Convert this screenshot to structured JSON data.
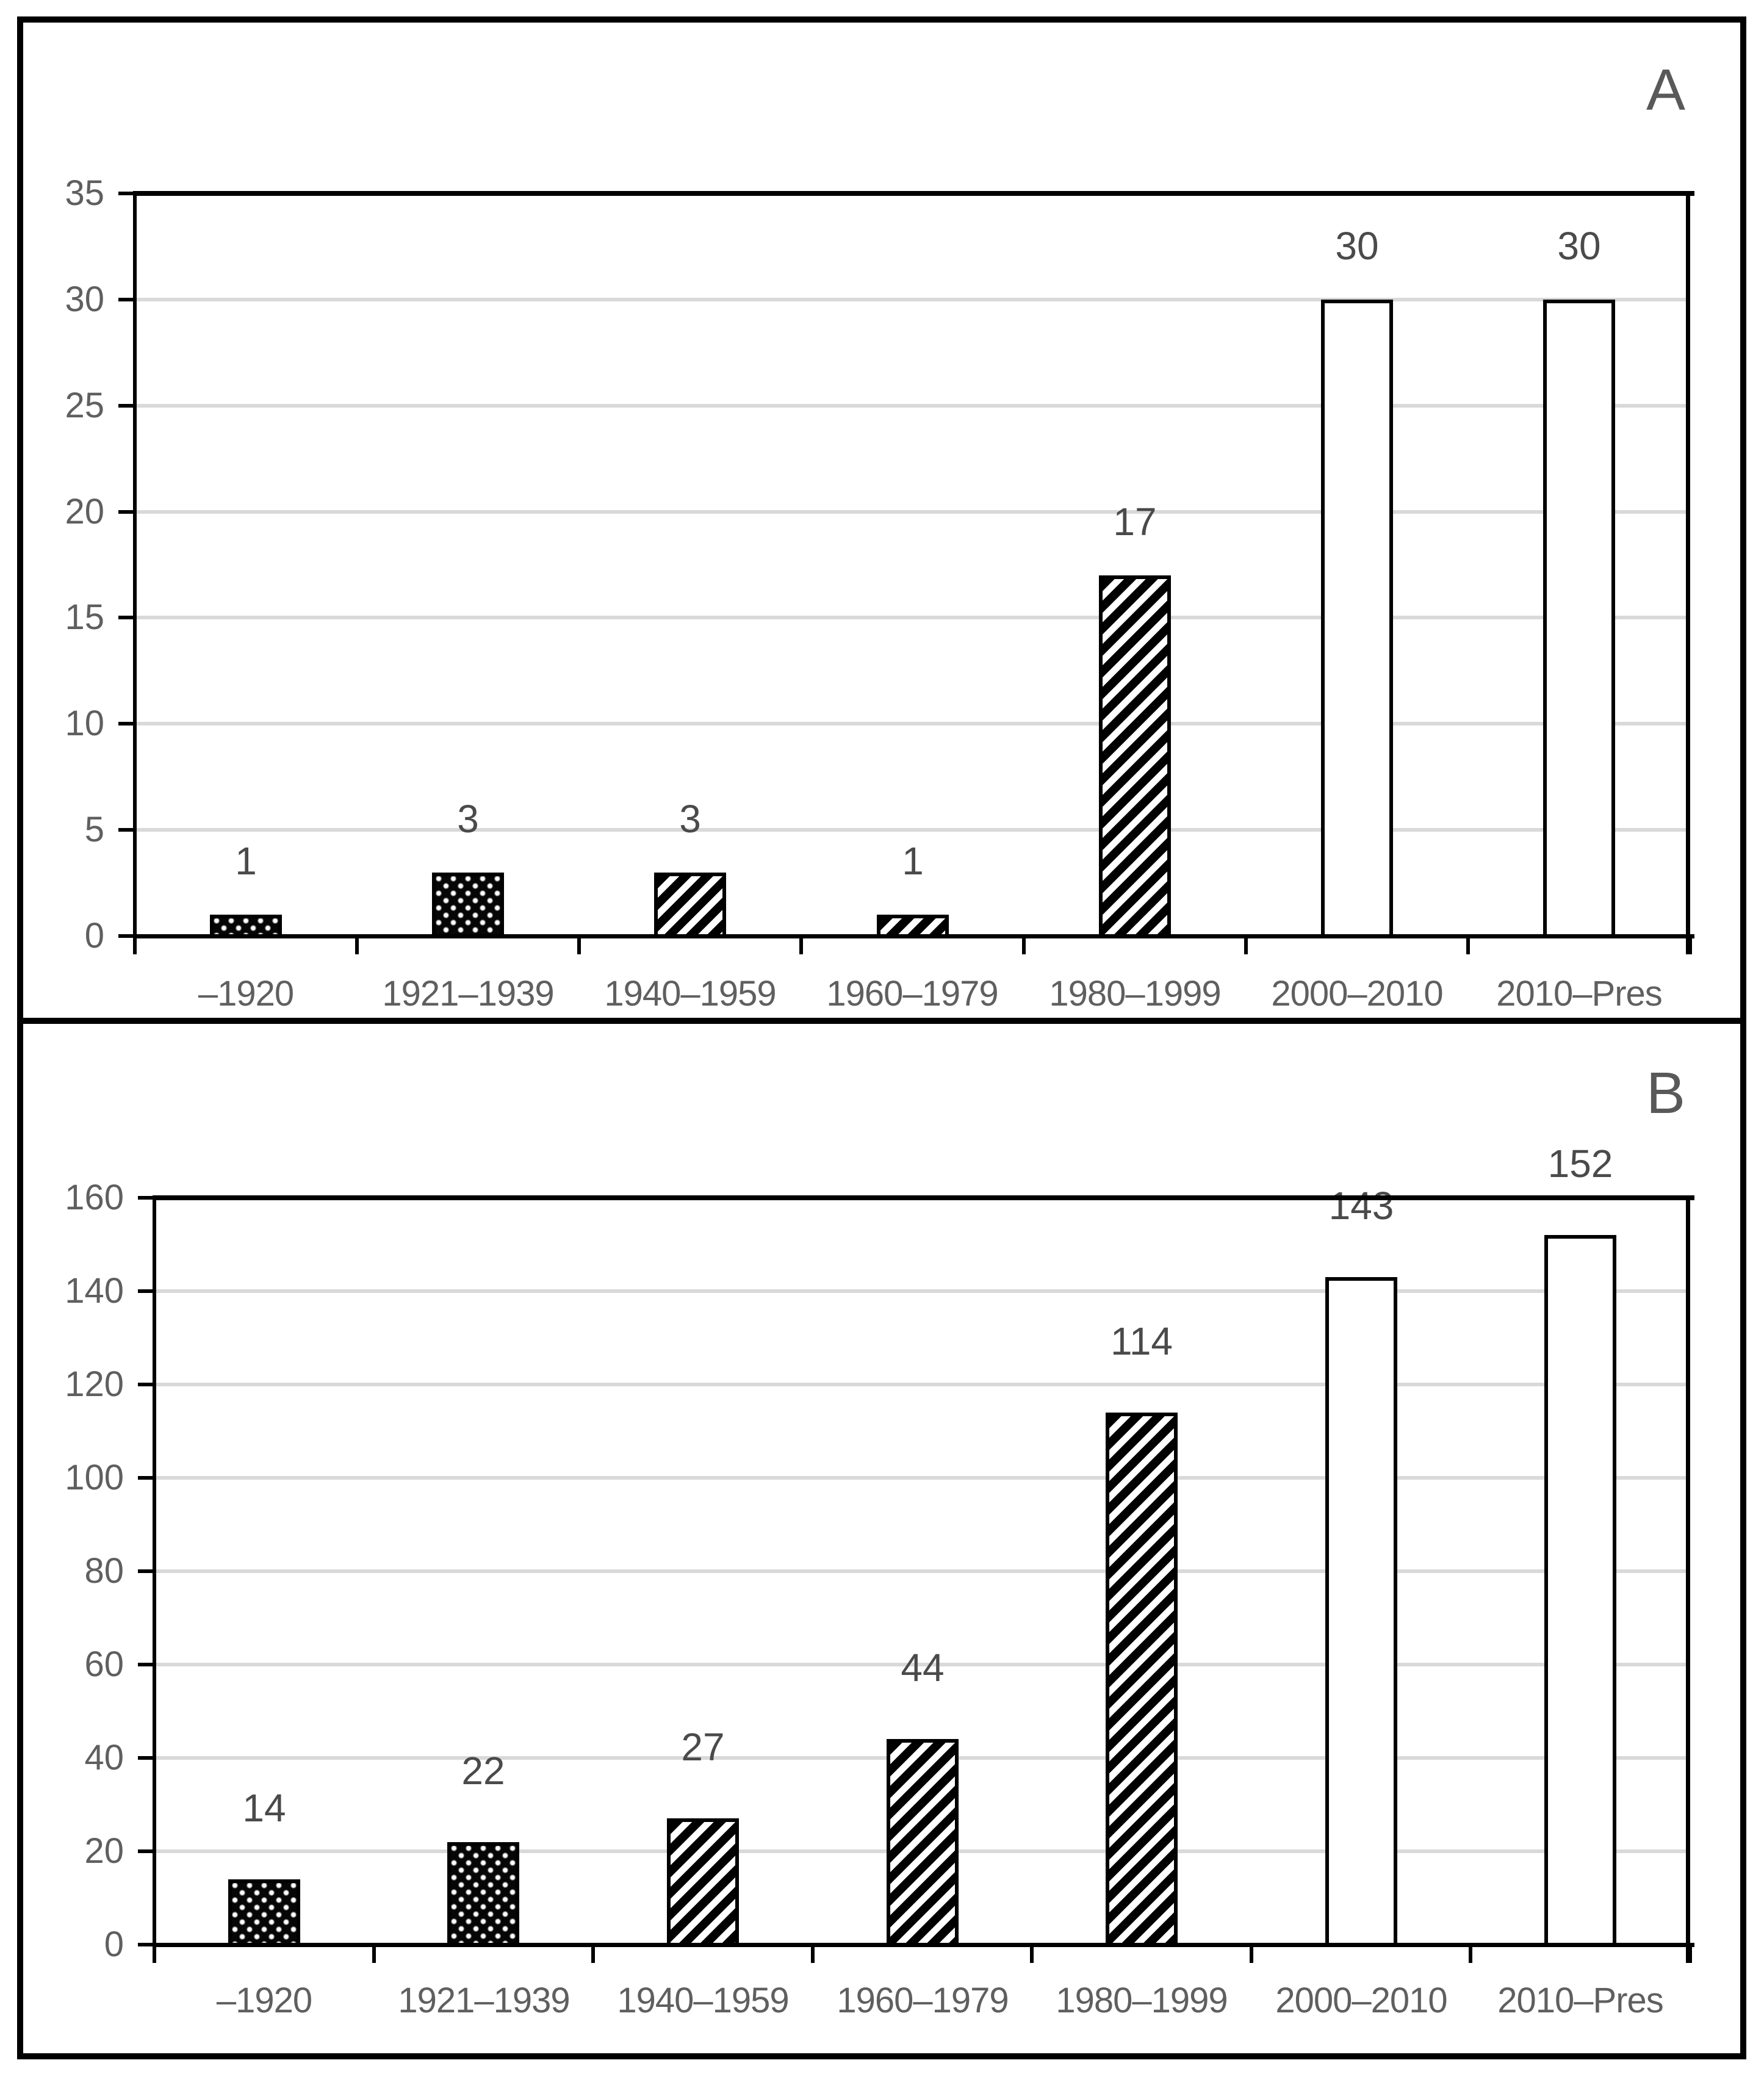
{
  "colors": {
    "axis": "#000000",
    "gridline": "#d9d9d9",
    "tick_text": "#5f5f5f",
    "value_text": "#4a4a4a",
    "panel_letter_text": "#595959",
    "bar_dark_fill": "#000000",
    "bar_light_fill": "#ffffff"
  },
  "chart_data": [
    {
      "type": "bar",
      "panel_label": "A",
      "title": "",
      "xlabel": "",
      "ylabel": "",
      "legend": "none",
      "grid": true,
      "categories": [
        "–1920",
        "1921–1939",
        "1940–1959",
        "1960–1979",
        "1980–1999",
        "2000–2010",
        "2010–Pres"
      ],
      "values": [
        1,
        3,
        3,
        1,
        17,
        30,
        30
      ],
      "value_labels": [
        "1",
        "3",
        "3",
        "1",
        "17",
        "30",
        "30"
      ],
      "bar_styles": [
        "dots",
        "dots",
        "diagonal",
        "diagonal",
        "diagonal",
        "plain",
        "plain"
      ],
      "ylim": [
        0,
        35
      ],
      "ytick_interval": 5,
      "ytick_labels": [
        "0",
        "5",
        "10",
        "15",
        "20",
        "25",
        "30",
        "35"
      ]
    },
    {
      "type": "bar",
      "panel_label": "B",
      "title": "",
      "xlabel": "",
      "ylabel": "",
      "legend": "none",
      "grid": true,
      "categories": [
        "–1920",
        "1921–1939",
        "1940–1959",
        "1960–1979",
        "1980–1999",
        "2000–2010",
        "2010–Pres"
      ],
      "values": [
        14,
        22,
        27,
        44,
        114,
        143,
        152
      ],
      "value_labels": [
        "14",
        "22",
        "27",
        "44",
        "114",
        "143",
        "152"
      ],
      "bar_styles": [
        "dots",
        "dots",
        "diagonal",
        "diagonal",
        "diagonal",
        "plain",
        "plain"
      ],
      "ylim": [
        0,
        160
      ],
      "ytick_interval": 20,
      "ytick_labels": [
        "0",
        "20",
        "40",
        "60",
        "80",
        "100",
        "120",
        "140",
        "160"
      ]
    }
  ]
}
